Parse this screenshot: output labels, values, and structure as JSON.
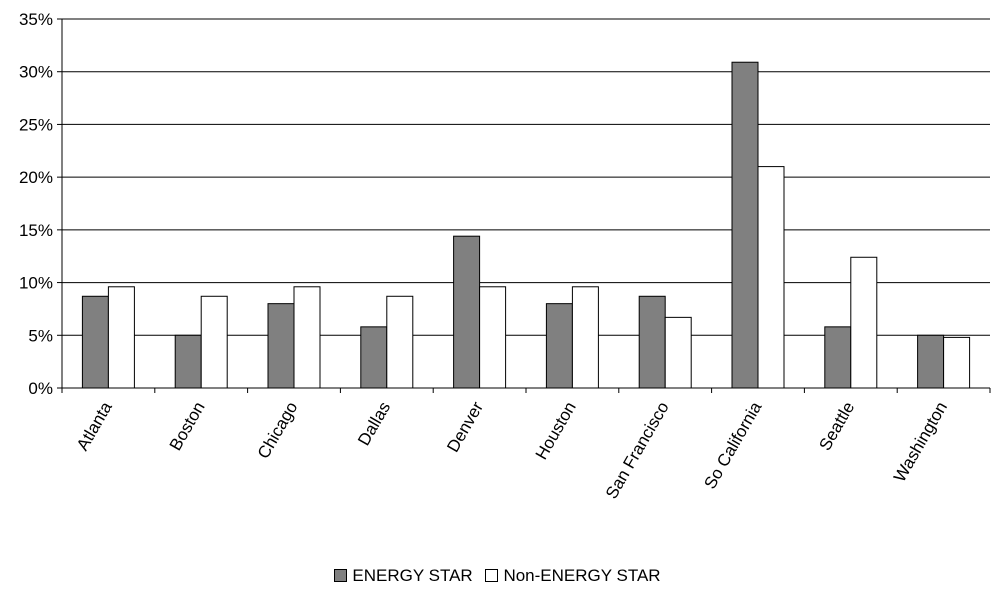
{
  "chart_data": {
    "type": "bar",
    "categories": [
      "Atlanta",
      "Boston",
      "Chicago",
      "Dallas",
      "Denver",
      "Houston",
      "San Francisco",
      "So California",
      "Seattle",
      "Washington"
    ],
    "series": [
      {
        "name": "ENERGY STAR",
        "values": [
          8.7,
          5.0,
          8.0,
          5.8,
          14.4,
          8.0,
          8.7,
          30.9,
          5.8,
          5.0
        ],
        "color": "#808080"
      },
      {
        "name": "Non-ENERGY STAR",
        "values": [
          9.6,
          8.7,
          9.6,
          8.7,
          9.6,
          9.6,
          6.7,
          21.0,
          12.4,
          4.8
        ],
        "color": "#ffffff"
      }
    ],
    "title": "",
    "xlabel": "",
    "ylabel": "",
    "ylim": [
      0,
      35
    ],
    "yticks": [
      "0%",
      "5%",
      "10%",
      "15%",
      "20%",
      "25%",
      "30%",
      "35%"
    ],
    "grid": true,
    "legend_position": "bottom"
  }
}
